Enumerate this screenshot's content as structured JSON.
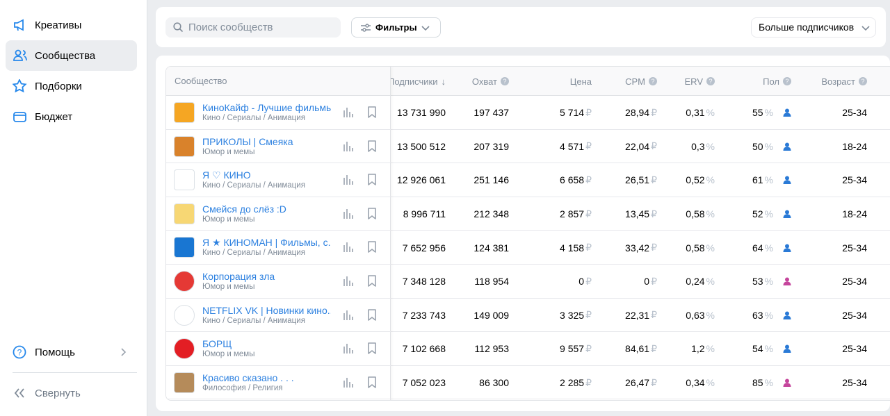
{
  "sidebar": {
    "items": [
      "Креативы",
      "Сообщества",
      "Подборки",
      "Бюджет"
    ],
    "help": "Помощь",
    "collapse": "Свернуть"
  },
  "toolbar": {
    "search_placeholder": "Поиск сообществ",
    "filters": "Фильтры",
    "sort": "Больше подписчиков"
  },
  "units": {
    "currency": "₽",
    "percent": "%"
  },
  "table": {
    "headers": [
      "Сообщество",
      "Подписчики",
      "Охват",
      "Цена",
      "CPM",
      "ERV",
      "Пол",
      "Возраст"
    ],
    "rows": [
      {
        "name": "КиноКайф - Лучшие фильмы",
        "category": "Кино / Сериалы / Анимация",
        "subscribers": "13 731 990",
        "reach": "197 437",
        "price": "5 714",
        "cpm": "28,94",
        "erv": "0,31",
        "gender": "55",
        "gender_color": "#2a7ad6",
        "age": "25-34"
      },
      {
        "name": "ПРИКОЛЫ | Смеяка",
        "category": "Юмор и мемы",
        "subscribers": "13 500 512",
        "reach": "207 319",
        "price": "4 571",
        "cpm": "22,04",
        "erv": "0,3",
        "gender": "50",
        "gender_color": "#2a7ad6",
        "age": "18-24"
      },
      {
        "name": "Я ♡ КИНО",
        "category": "Кино / Сериалы / Анимация",
        "subscribers": "12 926 061",
        "reach": "251 146",
        "price": "6 658",
        "cpm": "26,51",
        "erv": "0,52",
        "gender": "61",
        "gender_color": "#2a7ad6",
        "age": "25-34"
      },
      {
        "name": "Смейся до слёз :D",
        "category": "Юмор и мемы",
        "subscribers": "8 996 711",
        "reach": "212 348",
        "price": "2 857",
        "cpm": "13,45",
        "erv": "0,58",
        "gender": "52",
        "gender_color": "#2a7ad6",
        "age": "18-24"
      },
      {
        "name": "Я ★ КИНОМАН | Фильмы, с...",
        "category": "Кино / Сериалы / Анимация",
        "subscribers": "7 652 956",
        "reach": "124 381",
        "price": "4 158",
        "cpm": "33,42",
        "erv": "0,58",
        "gender": "64",
        "gender_color": "#2a7ad6",
        "age": "25-34"
      },
      {
        "name": "Корпорация зла",
        "category": "Юмор и мемы",
        "subscribers": "7 348 128",
        "reach": "118 954",
        "price": "0",
        "cpm": "0",
        "erv": "0,24",
        "gender": "53",
        "gender_color": "#c5459c",
        "age": "25-34"
      },
      {
        "name": "NETFLIX VK | Новинки кино...",
        "category": "Кино / Сериалы / Анимация",
        "subscribers": "7 233 743",
        "reach": "149 009",
        "price": "3 325",
        "cpm": "22,31",
        "erv": "0,63",
        "gender": "63",
        "gender_color": "#2a7ad6",
        "age": "25-34"
      },
      {
        "name": "БОРЩ",
        "category": "Юмор и мемы",
        "subscribers": "7 102 668",
        "reach": "112 953",
        "price": "9 557",
        "cpm": "84,61",
        "erv": "1,2",
        "gender": "54",
        "gender_color": "#2a7ad6",
        "age": "25-34"
      },
      {
        "name": "Красиво сказано . . .",
        "category": "Философия / Религия",
        "subscribers": "7 052 023",
        "reach": "86 300",
        "price": "2 285",
        "cpm": "26,47",
        "erv": "0,34",
        "gender": "85",
        "gender_color": "#c5459c",
        "age": "25-34"
      }
    ]
  }
}
